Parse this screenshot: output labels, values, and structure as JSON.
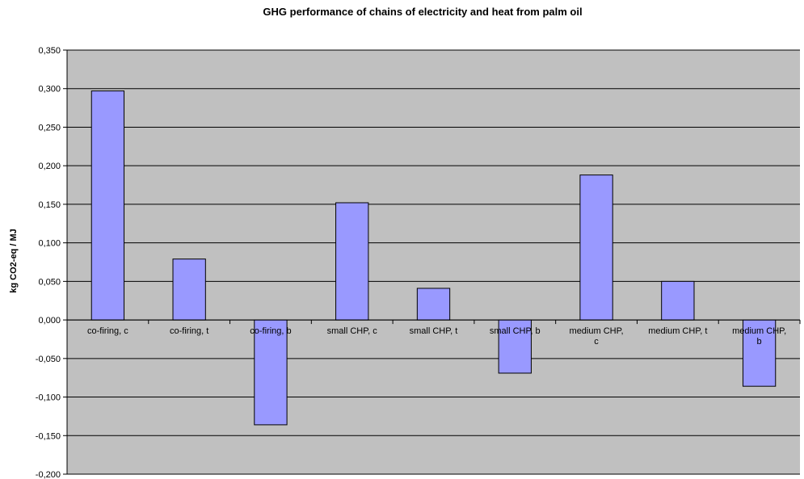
{
  "chart_data": {
    "type": "bar",
    "title": "GHG performance of chains of electricity and heat from palm oil",
    "xlabel": "",
    "ylabel": "kg CO2-eq / MJ",
    "ylim": [
      -0.2,
      0.35
    ],
    "ytick_step": 0.05,
    "ytick_labels": [
      "0,350",
      "0,300",
      "0,250",
      "0,200",
      "0,150",
      "0,100",
      "0,050",
      "0,000",
      "-0,050",
      "-0,100",
      "-0,150",
      "-0,200"
    ],
    "grid": true,
    "legend": "none",
    "plot_background": "#c0c0c0",
    "bar_color": "#9999ff",
    "categories": [
      [
        "co-firing, c"
      ],
      [
        "co-firing, t"
      ],
      [
        "co-firing, b"
      ],
      [
        "small CHP, c"
      ],
      [
        "small CHP, t"
      ],
      [
        "small CHP, b"
      ],
      [
        "medium CHP,",
        "c"
      ],
      [
        "medium CHP, t"
      ],
      [
        "medium CHP,",
        "b"
      ]
    ],
    "values": [
      0.297,
      0.079,
      -0.136,
      0.152,
      0.041,
      -0.069,
      0.188,
      0.05,
      -0.086
    ]
  }
}
